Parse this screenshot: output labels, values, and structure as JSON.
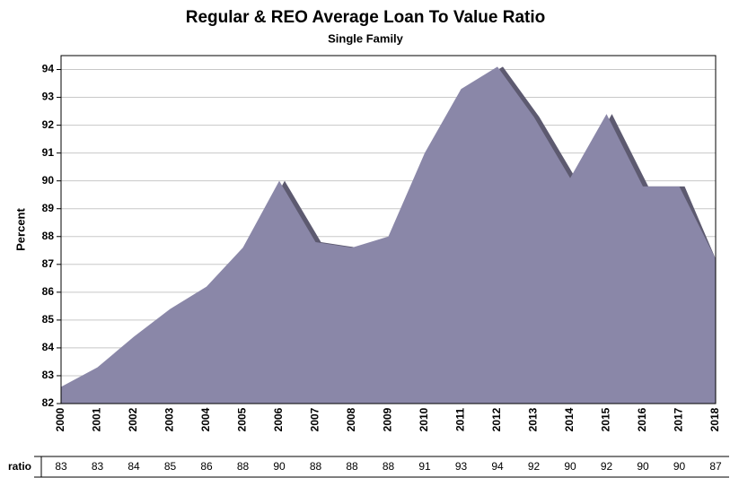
{
  "chart_data": {
    "type": "area",
    "title": "Regular & REO Average Loan To Value Ratio",
    "subtitle": "Single Family",
    "y_label": "Percent",
    "categories": [
      "2000",
      "2001",
      "2002",
      "2003",
      "2004",
      "2005",
      "2006",
      "2007",
      "2008",
      "2009",
      "2010",
      "2011",
      "2012",
      "2013",
      "2014",
      "2015",
      "2016",
      "2017",
      "2018"
    ],
    "series": [
      {
        "name": "ratio",
        "color": "#8a87a8",
        "shadow_color": "#5d5a70",
        "values": [
          82.6,
          83.3,
          84.4,
          85.4,
          86.2,
          87.6,
          90.0,
          87.8,
          87.6,
          88.0,
          91.0,
          93.3,
          94.1,
          92.3,
          90.1,
          92.4,
          89.8,
          89.8,
          87.2
        ],
        "value_labels": [
          "83",
          "83",
          "84",
          "85",
          "86",
          "88",
          "90",
          "88",
          "88",
          "88",
          "91",
          "93",
          "94",
          "92",
          "90",
          "92",
          "90",
          "90",
          "87"
        ]
      }
    ],
    "ylim": [
      82,
      94.5
    ],
    "yticks": [
      82,
      83,
      84,
      85,
      86,
      87,
      88,
      89,
      90,
      91,
      92,
      93,
      94
    ],
    "grid": true
  }
}
